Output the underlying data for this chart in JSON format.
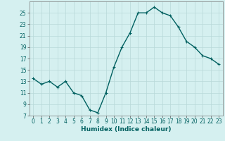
{
  "x": [
    0,
    1,
    2,
    3,
    4,
    5,
    6,
    7,
    8,
    9,
    10,
    11,
    12,
    13,
    14,
    15,
    16,
    17,
    18,
    19,
    20,
    21,
    22,
    23
  ],
  "y": [
    13.5,
    12.5,
    13.0,
    12.0,
    13.0,
    11.0,
    10.5,
    8.0,
    7.5,
    11.0,
    15.5,
    19.0,
    21.5,
    25.0,
    25.0,
    26.0,
    25.0,
    24.5,
    22.5,
    20.0,
    19.0,
    17.5,
    17.0,
    16.0
  ],
  "line_color": "#006060",
  "marker": "+",
  "marker_size": 3,
  "bg_color": "#d5f0f0",
  "grid_color": "#b8d8d8",
  "xlabel": "Humidex (Indice chaleur)",
  "xlim": [
    -0.5,
    23.5
  ],
  "ylim": [
    7,
    27
  ],
  "yticks": [
    7,
    9,
    11,
    13,
    15,
    17,
    19,
    21,
    23,
    25
  ],
  "xticks": [
    0,
    1,
    2,
    3,
    4,
    5,
    6,
    7,
    8,
    9,
    10,
    11,
    12,
    13,
    14,
    15,
    16,
    17,
    18,
    19,
    20,
    21,
    22,
    23
  ],
  "tick_label_fontsize": 5.5,
  "xlabel_fontsize": 6.5,
  "line_width": 1.0
}
